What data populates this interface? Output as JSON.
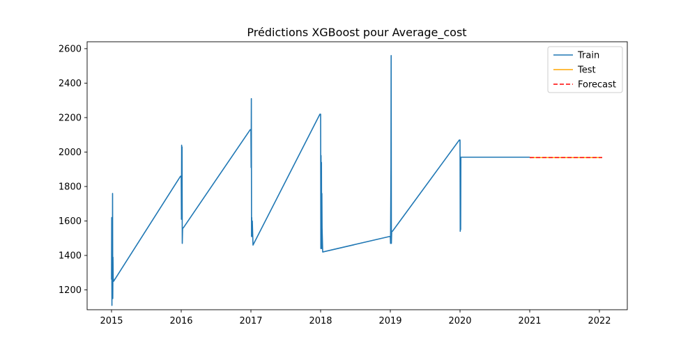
{
  "chart_data": {
    "type": "line",
    "title": "Prédictions XGBoost pour Average_cost",
    "xlabel": "",
    "ylabel": "",
    "xlim": [
      2014.65,
      2022.4
    ],
    "ylim": [
      1085,
      2640
    ],
    "xticks": [
      2015,
      2016,
      2017,
      2018,
      2019,
      2020,
      2021,
      2022
    ],
    "xtick_labels": [
      "2015",
      "2016",
      "2017",
      "2018",
      "2019",
      "2020",
      "2021",
      "2022"
    ],
    "yticks": [
      1200,
      1400,
      1600,
      1800,
      2000,
      2200,
      2400,
      2600
    ],
    "ytick_labels": [
      "1200",
      "1400",
      "1600",
      "1800",
      "2000",
      "2200",
      "2400",
      "2600"
    ],
    "grid": false,
    "legend_position": "top-right",
    "series": [
      {
        "name": "Train",
        "color": "#1f77b4",
        "dash": "solid",
        "points": [
          [
            2015.0,
            1260
          ],
          [
            2015.003,
            1620
          ],
          [
            2015.006,
            1110
          ],
          [
            2015.009,
            1550
          ],
          [
            2015.012,
            1240
          ],
          [
            2015.015,
            1760
          ],
          [
            2015.018,
            1150
          ],
          [
            2015.021,
            1390
          ],
          [
            2015.024,
            1270
          ],
          [
            2015.03,
            1250
          ],
          [
            2015.99,
            1860
          ],
          [
            2016.0,
            1860
          ],
          [
            2016.003,
            1610
          ],
          [
            2016.006,
            2040
          ],
          [
            2016.009,
            1660
          ],
          [
            2016.012,
            2030
          ],
          [
            2016.015,
            1470
          ],
          [
            2016.02,
            1560
          ],
          [
            2016.03,
            1560
          ],
          [
            2016.99,
            2130
          ],
          [
            2017.0,
            2130
          ],
          [
            2017.003,
            1910
          ],
          [
            2017.006,
            2310
          ],
          [
            2017.009,
            1510
          ],
          [
            2017.012,
            1620
          ],
          [
            2017.015,
            1510
          ],
          [
            2017.02,
            1600
          ],
          [
            2017.03,
            1460
          ],
          [
            2017.99,
            2220
          ],
          [
            2018.0,
            2220
          ],
          [
            2018.003,
            1440
          ],
          [
            2018.006,
            1980
          ],
          [
            2018.009,
            1610
          ],
          [
            2018.012,
            1940
          ],
          [
            2018.015,
            1440
          ],
          [
            2018.018,
            1760
          ],
          [
            2018.021,
            1560
          ],
          [
            2018.03,
            1420
          ],
          [
            2018.99,
            1510
          ],
          [
            2019.0,
            1510
          ],
          [
            2019.003,
            1470
          ],
          [
            2019.006,
            1690
          ],
          [
            2019.009,
            1920
          ],
          [
            2019.012,
            2560
          ],
          [
            2019.015,
            1470
          ],
          [
            2019.02,
            1540
          ],
          [
            2019.03,
            1540
          ],
          [
            2019.99,
            2070
          ],
          [
            2020.0,
            2070
          ],
          [
            2020.003,
            1540
          ],
          [
            2020.006,
            1970
          ],
          [
            2020.009,
            1550
          ],
          [
            2020.012,
            1970
          ],
          [
            2021.0,
            1970
          ]
        ]
      },
      {
        "name": "Test",
        "color": "#ffa500",
        "dash": "solid",
        "points": [
          [
            2021.0,
            1968
          ],
          [
            2022.04,
            1968
          ]
        ]
      },
      {
        "name": "Forecast",
        "color": "#ff0000",
        "dash": "dashed",
        "points": [
          [
            2021.0,
            1968
          ],
          [
            2022.04,
            1968
          ]
        ]
      }
    ]
  }
}
